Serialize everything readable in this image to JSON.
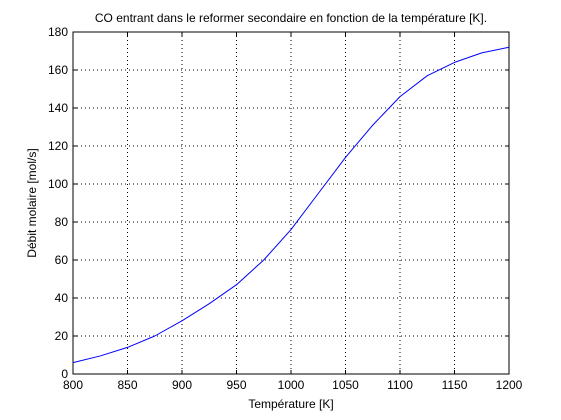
{
  "chart_data": {
    "type": "line",
    "title": "CO entrant dans le reformer secondaire en fonction de la température [K].",
    "xlabel": "Température [K]",
    "ylabel": "Débit molaire [mol/s]",
    "xlim": [
      800,
      1200
    ],
    "ylim": [
      0,
      180
    ],
    "xticks": [
      800,
      850,
      900,
      950,
      1000,
      1050,
      1100,
      1150,
      1200
    ],
    "yticks": [
      0,
      20,
      40,
      60,
      80,
      100,
      120,
      140,
      160,
      180
    ],
    "grid": true,
    "series": [
      {
        "color": "#0000ff",
        "x": [
          800,
          825,
          850,
          875,
          900,
          925,
          950,
          975,
          1000,
          1025,
          1050,
          1075,
          1100,
          1125,
          1150,
          1175,
          1200
        ],
        "y": [
          6,
          9.5,
          14,
          20,
          28,
          37,
          47,
          60,
          76,
          95,
          114,
          131,
          146,
          157,
          164,
          169,
          172
        ]
      }
    ]
  }
}
